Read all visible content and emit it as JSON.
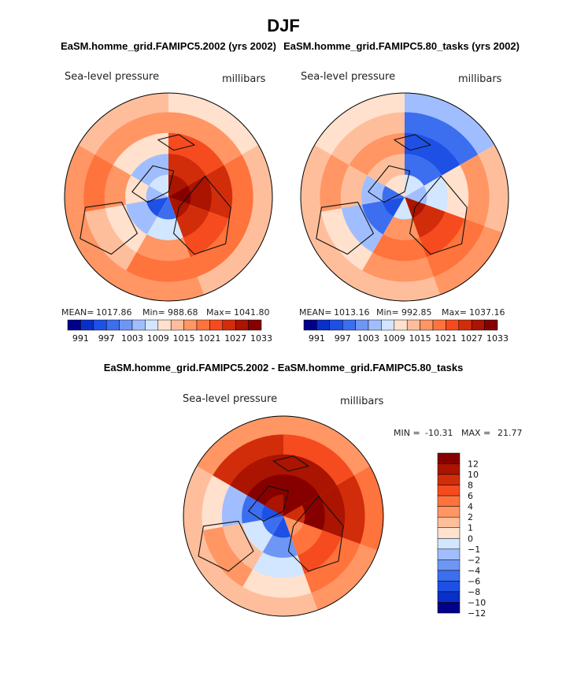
{
  "title": "DJF",
  "palette_sequential": [
    "#00008b",
    "#0a2fc8",
    "#1e50e6",
    "#3c6ef0",
    "#6e96f5",
    "#a0beff",
    "#d2e6ff",
    "#ffe1cd",
    "#ffbe9b",
    "#ff9664",
    "#ff733c",
    "#f54b1e",
    "#d22d0a",
    "#aa1400",
    "#870000"
  ],
  "palette_diff": [
    "#00008b",
    "#0a2fc8",
    "#1e50e6",
    "#3c6ef0",
    "#6e96f5",
    "#a0beff",
    "#d2e6ff",
    "#ffe1cd",
    "#ffbe9b",
    "#ff9664",
    "#ff733c",
    "#f54b1e",
    "#d22d0a",
    "#aa1400",
    "#870000"
  ],
  "chart_data": [
    {
      "type": "heatmap",
      "id": "panel-1",
      "projection": "north polar stereographic",
      "title": "EaSM.homme_grid.FAMIPC5.2002 (yrs 2002)",
      "variable": "Sea-level pressure",
      "units": "millibars",
      "stats": {
        "mean_label": "MEAN=",
        "mean": "1017.86",
        "min_label": "Min=",
        "min": "988.68",
        "max_label": "Max=",
        "max": "1041.80"
      },
      "colorbar_ticks": [
        "991",
        "997",
        "1003",
        "1009",
        "1015",
        "1021",
        "1027",
        "1033"
      ],
      "sectors": [
        {
          "lon_from": 0,
          "lon_to": 60,
          "colors": [
            7,
            9,
            11,
            12,
            13
          ]
        },
        {
          "lon_from": 60,
          "lon_to": 110,
          "colors": [
            8,
            10,
            12,
            13,
            14
          ]
        },
        {
          "lon_from": 110,
          "lon_to": 160,
          "colors": [
            8,
            10,
            11,
            12,
            13
          ]
        },
        {
          "lon_from": 160,
          "lon_to": 210,
          "colors": [
            9,
            10,
            9,
            6,
            3
          ]
        },
        {
          "lon_from": 210,
          "lon_to": 260,
          "colors": [
            9,
            8,
            7,
            5,
            2
          ]
        },
        {
          "lon_from": 260,
          "lon_to": 300,
          "colors": [
            9,
            10,
            9,
            7,
            5
          ]
        },
        {
          "lon_from": 300,
          "lon_to": 360,
          "colors": [
            8,
            9,
            7,
            5,
            6
          ]
        }
      ]
    },
    {
      "type": "heatmap",
      "id": "panel-2",
      "projection": "north polar stereographic",
      "title": "EaSM.homme_grid.FAMIPC5.80_tasks (yrs 2002)",
      "variable": "Sea-level pressure",
      "units": "millibars",
      "stats": {
        "mean_label": "MEAN=",
        "mean": "1013.16",
        "min_label": "Min=",
        "min": "992.85",
        "max_label": "Max=",
        "max": "1037.16"
      },
      "colorbar_ticks": [
        "991",
        "997",
        "1003",
        "1009",
        "1015",
        "1021",
        "1027",
        "1033"
      ],
      "sectors": [
        {
          "lon_from": 0,
          "lon_to": 60,
          "colors": [
            5,
            3,
            2,
            3,
            6
          ]
        },
        {
          "lon_from": 60,
          "lon_to": 110,
          "colors": [
            8,
            9,
            7,
            6,
            5
          ]
        },
        {
          "lon_from": 110,
          "lon_to": 160,
          "colors": [
            9,
            10,
            11,
            12,
            13
          ]
        },
        {
          "lon_from": 160,
          "lon_to": 210,
          "colors": [
            8,
            9,
            10,
            9,
            6
          ]
        },
        {
          "lon_from": 210,
          "lon_to": 260,
          "colors": [
            8,
            7,
            5,
            3,
            2
          ]
        },
        {
          "lon_from": 260,
          "lon_to": 300,
          "colors": [
            8,
            9,
            8,
            5,
            3
          ]
        },
        {
          "lon_from": 300,
          "lon_to": 360,
          "colors": [
            7,
            8,
            9,
            8,
            7
          ]
        }
      ]
    },
    {
      "type": "heatmap",
      "id": "panel-diff",
      "projection": "north polar stereographic",
      "title": "EaSM.homme_grid.FAMIPC5.2002 - EaSM.homme_grid.FAMIPC5.80_tasks",
      "variable": "Sea-level pressure",
      "units": "millibars",
      "stats": {
        "min_label": "MIN =",
        "min": "-10.31",
        "max_label": "MAX =",
        "max": "21.77"
      },
      "colorbar_ticks": [
        "12",
        "10",
        "8",
        "6",
        "4",
        "2",
        "1",
        "0",
        "−1",
        "−2",
        "−4",
        "−6",
        "−8",
        "−10",
        "−12"
      ],
      "sectors": [
        {
          "lon_from": 0,
          "lon_to": 60,
          "colors": [
            9,
            11,
            13,
            14,
            14
          ]
        },
        {
          "lon_from": 60,
          "lon_to": 110,
          "colors": [
            10,
            12,
            13,
            14,
            12
          ]
        },
        {
          "lon_from": 110,
          "lon_to": 160,
          "colors": [
            9,
            10,
            11,
            10,
            9
          ]
        },
        {
          "lon_from": 160,
          "lon_to": 210,
          "colors": [
            8,
            7,
            6,
            4,
            2
          ]
        },
        {
          "lon_from": 210,
          "lon_to": 260,
          "colors": [
            8,
            9,
            8,
            6,
            3
          ]
        },
        {
          "lon_from": 260,
          "lon_to": 300,
          "colors": [
            8,
            7,
            5,
            3,
            2
          ]
        },
        {
          "lon_from": 300,
          "lon_to": 360,
          "colors": [
            9,
            12,
            13,
            14,
            13
          ]
        }
      ]
    }
  ]
}
